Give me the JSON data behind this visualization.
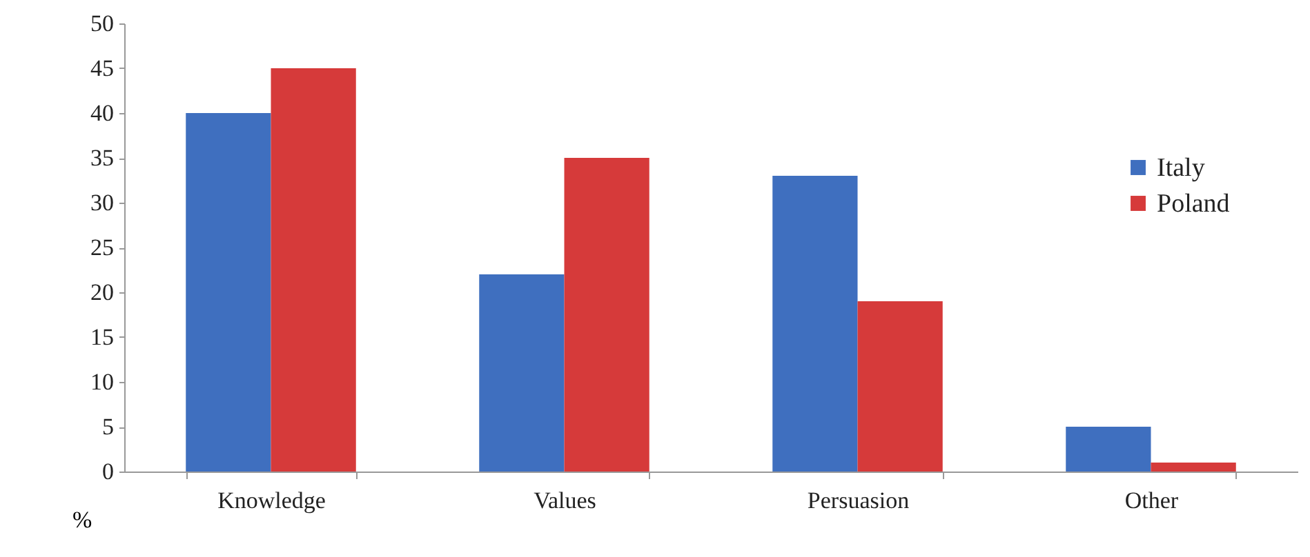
{
  "chart_data": {
    "type": "bar",
    "ylabel": "%",
    "categories": [
      "Knowledge",
      "Values",
      "Persuasion",
      "Other"
    ],
    "series": [
      {
        "name": "Italy",
        "color": "#3f6fbf",
        "values": [
          40,
          22,
          33,
          5
        ]
      },
      {
        "name": "Poland",
        "color": "#d63a3a",
        "values": [
          45,
          35,
          19,
          1
        ]
      }
    ],
    "ylim": [
      0,
      50
    ],
    "yticks": [
      0,
      5,
      10,
      15,
      20,
      25,
      30,
      35,
      40,
      45,
      50
    ],
    "grid": false,
    "legend": "right"
  }
}
